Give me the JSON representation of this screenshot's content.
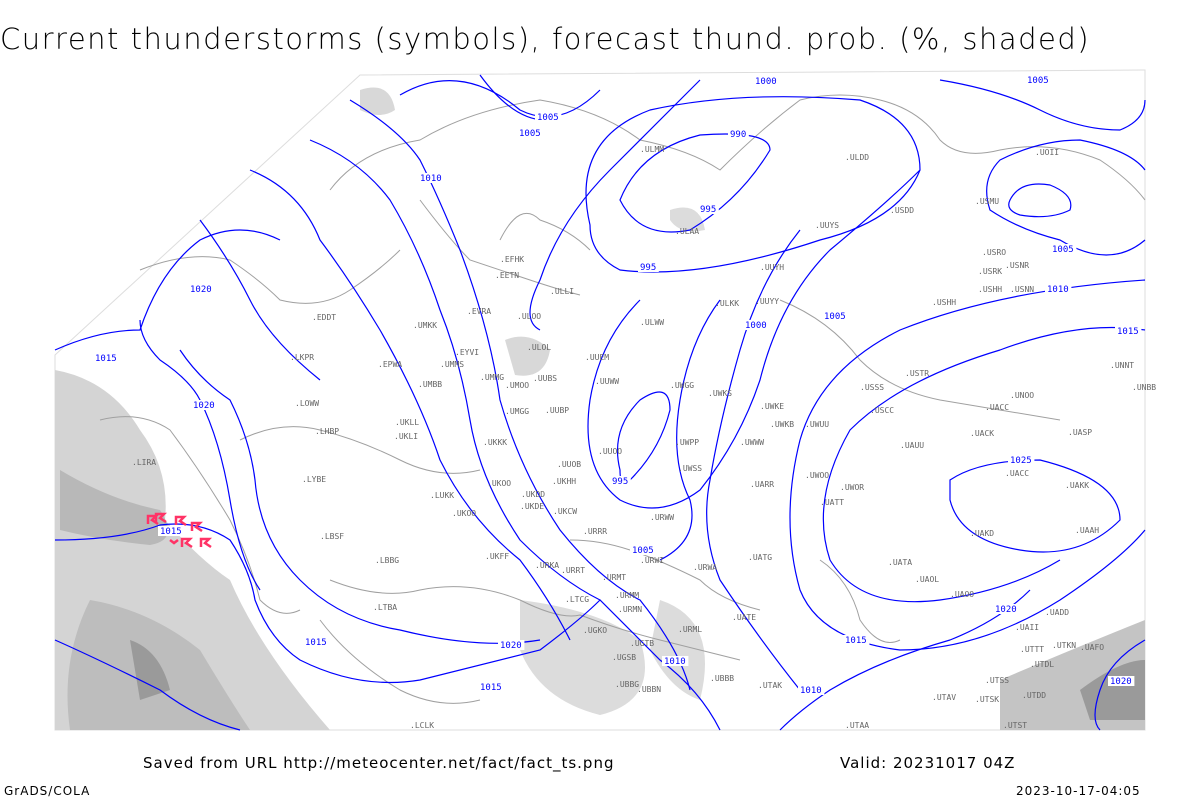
{
  "title": "Current thunderstorms (symbols), forecast thund. prob. (%, shaded)",
  "footer": {
    "source": "Saved from URL http://meteocenter.net/fact/fact_ts.png",
    "valid": "Valid: 20231017 04Z",
    "software": "GrADS/COLA",
    "timestamp": "2023-10-17-04:05"
  },
  "colors": {
    "isobar": "#0000ff",
    "borders": "#a0a0a0",
    "shading": "#c8c8c8",
    "thunderstorm_symbol": "#ff3366",
    "station_label": "#666666"
  },
  "isobar_labels": [
    "1000",
    "1005",
    "1005",
    "1005",
    "995",
    "990",
    "1010",
    "1020",
    "995",
    "1015",
    "1020",
    "1000",
    "1005",
    "1005",
    "1010",
    "1015",
    "1025",
    "995",
    "1005",
    "1015",
    "1015",
    "1020",
    "1010",
    "1015",
    "1020",
    "1010",
    "1015",
    "1020"
  ],
  "stations": [
    "ULMM",
    "UOII",
    "ULDD",
    "USMU",
    "USDD",
    "UUYS",
    "ULAA",
    "USRO",
    "USNR",
    "USRK",
    "USHH",
    "USNN",
    "UUYH",
    "ULKK",
    "UUYY",
    "USHH",
    "EFHK",
    "EETN",
    "ULLI",
    "EVRA",
    "ULOO",
    "ULWW",
    "EDDT",
    "LKPR",
    "EPWA",
    "UMKK",
    "EYVI",
    "UMMS",
    "ULOL",
    "UUEM",
    "UMBB",
    "UMMG",
    "UMOO",
    "UUBS",
    "UUWW",
    "UWGG",
    "LOWW",
    "UWKS",
    "UWKE",
    "UWKB",
    "UWUU",
    "USCC",
    "USSS",
    "USTR",
    "UNOO",
    "UACC",
    "UACK",
    "UASP",
    "UNNT",
    "UNBB",
    "UKLL",
    "UKLI",
    "LHBP",
    "UMGG",
    "UUBP",
    "UKKK",
    "UUOO",
    "UWPP",
    "UWWW",
    "UAUU",
    "LIRA",
    "LYBE",
    "UKHH",
    "UKDD",
    "UKOO",
    "UUOB",
    "UWSS",
    "UARR",
    "UWOO",
    "UWOR",
    "UATT",
    "UACC",
    "UAKK",
    "UAKD",
    "UAAH",
    "LUKK",
    "UKOO",
    "UKDE",
    "UKCW",
    "URWW",
    "LBSF",
    "URRR",
    "URWI",
    "UKFF",
    "URKA",
    "URRT",
    "LBBG",
    "URMT",
    "URWA",
    "UATG",
    "UATA",
    "UAOL",
    "UAOO",
    "UADD",
    "UAII",
    "UTTT",
    "UTKN",
    "UAFO",
    "UTDL",
    "UTSS",
    "UTAV",
    "UTSK",
    "UTDD",
    "UTST",
    "UTAA",
    "UTAK",
    "UBBB",
    "UGTB",
    "UGSB",
    "UGKO",
    "UBBN",
    "UBBG",
    "URMM",
    "URMN",
    "URML",
    "UATE",
    "LTBA",
    "LTCG",
    "LCLK"
  ]
}
